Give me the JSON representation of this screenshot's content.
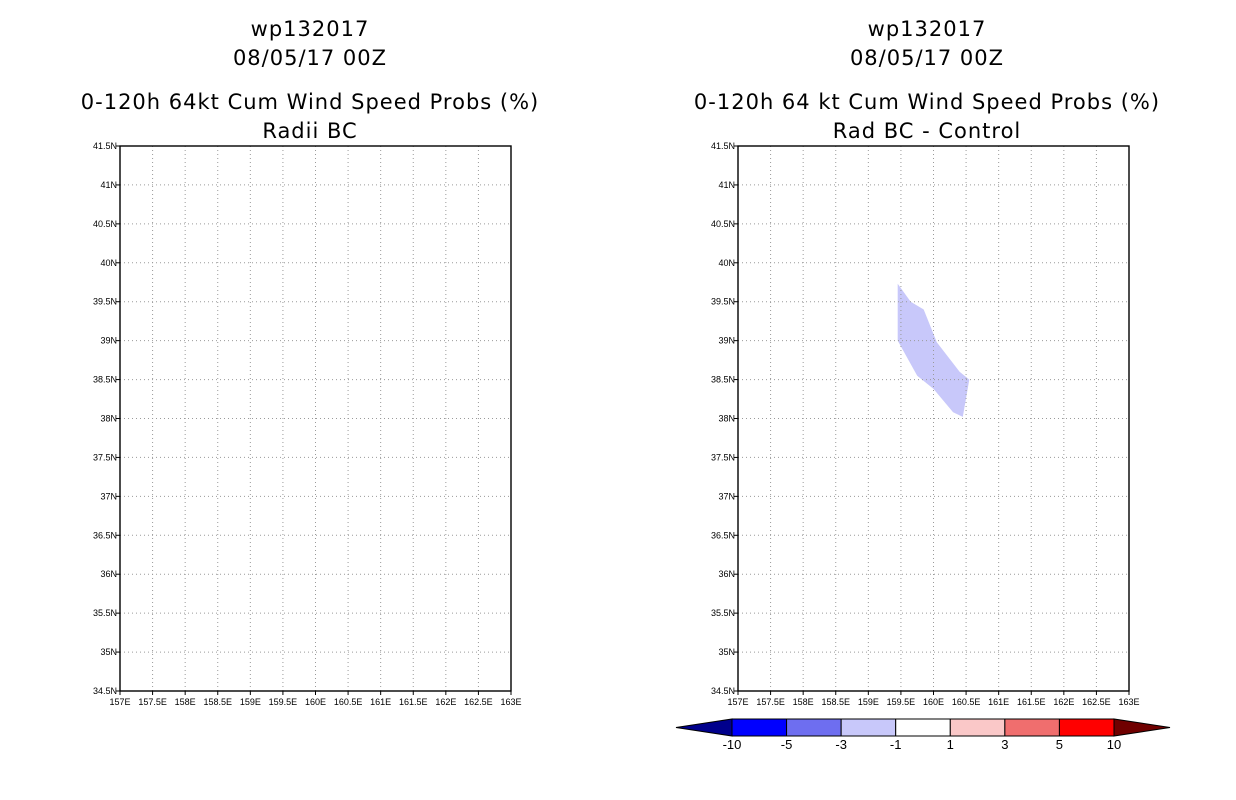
{
  "chart_data": [
    {
      "type": "map",
      "id": "left",
      "title_lines": [
        "wp132017",
        "08/05/17 00Z",
        "0-120h 64kt Cum Wind Speed Probs (%)",
        "Radii BC"
      ],
      "xlim": [
        157,
        163
      ],
      "ylim": [
        34.5,
        41.5
      ],
      "xticks": [
        157,
        157.5,
        158,
        158.5,
        159,
        159.5,
        160,
        160.5,
        161,
        161.5,
        162,
        162.5,
        163
      ],
      "xtick_labels": [
        "157E",
        "157.5E",
        "158E",
        "158.5E",
        "159E",
        "159.5E",
        "160E",
        "160.5E",
        "161E",
        "161.5E",
        "162E",
        "162.5E",
        "163E"
      ],
      "yticks": [
        34.5,
        35,
        35.5,
        36,
        36.5,
        37,
        37.5,
        38,
        38.5,
        39,
        39.5,
        40,
        40.5,
        41,
        41.5
      ],
      "ytick_labels": [
        "34.5N",
        "35N",
        "35.5N",
        "36N",
        "36.5N",
        "37N",
        "37.5N",
        "38N",
        "38.5N",
        "39N",
        "39.5N",
        "40N",
        "40.5N",
        "41N",
        "41.5N"
      ],
      "grid": true,
      "regions": []
    },
    {
      "type": "map",
      "id": "right",
      "title_lines": [
        "wp132017",
        "08/05/17 00Z",
        "0-120h 64 kt Cum Wind Speed Probs (%)",
        "Rad BC - Control"
      ],
      "xlim": [
        157,
        163
      ],
      "ylim": [
        34.5,
        41.5
      ],
      "xticks": [
        157,
        157.5,
        158,
        158.5,
        159,
        159.5,
        160,
        160.5,
        161,
        161.5,
        162,
        162.5,
        163
      ],
      "xtick_labels": [
        "157E",
        "157.5E",
        "158E",
        "158.5E",
        "159E",
        "159.5E",
        "160E",
        "160.5E",
        "161E",
        "161.5E",
        "162E",
        "162.5E",
        "163E"
      ],
      "yticks": [
        34.5,
        35,
        35.5,
        36,
        36.5,
        37,
        37.5,
        38,
        38.5,
        39,
        39.5,
        40,
        40.5,
        41,
        41.5
      ],
      "ytick_labels": [
        "34.5N",
        "35N",
        "35.5N",
        "36N",
        "36.5N",
        "37N",
        "37.5N",
        "38N",
        "38.5N",
        "39N",
        "39.5N",
        "40N",
        "40.5N",
        "41N",
        "41.5N"
      ],
      "grid": true,
      "regions": [
        {
          "name": "diff-region--3-to--1",
          "range": "-3 to -1",
          "color": "#c8c8fa",
          "points": [
            [
              159.45,
              39.73
            ],
            [
              159.65,
              39.5
            ],
            [
              159.85,
              39.4
            ],
            [
              160.05,
              38.98
            ],
            [
              160.4,
              38.6
            ],
            [
              160.55,
              38.5
            ],
            [
              160.45,
              38.02
            ],
            [
              160.3,
              38.08
            ],
            [
              160.0,
              38.38
            ],
            [
              159.75,
              38.55
            ],
            [
              159.45,
              39.0
            ],
            [
              159.45,
              39.5
            ]
          ]
        }
      ]
    }
  ],
  "colorbar": {
    "labels": [
      "-10",
      "-5",
      "-3",
      "-1",
      "1",
      "3",
      "5",
      "10"
    ],
    "colors": [
      "#00008c",
      "#0000ff",
      "#6e6ef0",
      "#c8c8fa",
      "#ffffff",
      "#fac8c8",
      "#f06e6e",
      "#ff0000",
      "#700000"
    ]
  }
}
